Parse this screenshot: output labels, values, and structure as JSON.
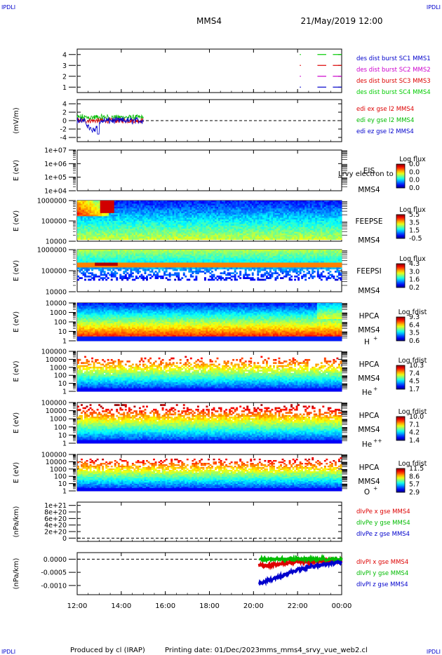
{
  "header": {
    "corner_left_top": "IPDLI",
    "corner_right_top": "IPDLI",
    "corner_left_bottom": "IPDLI",
    "corner_right_bottom": "IPDLI",
    "spacecraft": "MMS4",
    "date": "21/May/2019 12:00"
  },
  "footer": {
    "produced_by": "Produced by cl (IRAP)",
    "printing_date": "Printing date: 01/Dec/2023",
    "script_name": "mms_mms4_srvy_vue_web2.cl"
  },
  "time_axis": {
    "start_hours": 12,
    "end_hours": 24,
    "tick_labels": [
      "12:00",
      "14:00",
      "16:00",
      "18:00",
      "20:00",
      "22:00",
      "00:00"
    ],
    "tick_hours": [
      12,
      14,
      16,
      18,
      20,
      22,
      24
    ]
  },
  "colors": {
    "mms1": "#0000cc",
    "mms2": "#cc00cc",
    "mms3": "#dd0000",
    "mms4": "#00cc00",
    "ex": "#dd0000",
    "ey": "#00bb00",
    "ez": "#0000cc"
  },
  "chart_data": [
    {
      "id": "burst",
      "type": "scatter",
      "ylim": [
        0.5,
        4.5
      ],
      "yticks": [
        1,
        2,
        3,
        4
      ],
      "ytick_labels": [
        "1",
        "2",
        "3",
        "4"
      ],
      "ylabel": "",
      "legend": [
        {
          "label": "des dist burst SC1 MMS1",
          "color": "#0000cc"
        },
        {
          "label": "des dist burst SC2 MMS2",
          "color": "#cc00cc"
        },
        {
          "label": "des dist burst SC3 MMS3",
          "color": "#dd0000"
        },
        {
          "label": "des dist burst SC4 MMS4",
          "color": "#00cc00"
        }
      ],
      "series": [
        {
          "name": "des dist burst SC1 MMS1",
          "level": 1,
          "intervals": [
            [
              22.1,
              22.15
            ],
            [
              22.9,
              23.3
            ],
            [
              23.6,
              24.0
            ]
          ]
        },
        {
          "name": "des dist burst SC2 MMS2",
          "level": 2,
          "intervals": [
            [
              22.1,
              22.15
            ],
            [
              22.9,
              23.3
            ],
            [
              23.6,
              24.0
            ]
          ]
        },
        {
          "name": "des dist burst SC3 MMS3",
          "level": 3,
          "intervals": [
            [
              22.1,
              22.15
            ],
            [
              22.9,
              23.3
            ],
            [
              23.6,
              24.0
            ]
          ]
        },
        {
          "name": "des dist burst SC4 MMS4",
          "level": 4,
          "intervals": [
            [
              22.1,
              22.15
            ],
            [
              22.9,
              23.3
            ],
            [
              23.6,
              24.0
            ]
          ]
        }
      ]
    },
    {
      "id": "edi",
      "type": "line",
      "ylim": [
        -5,
        5
      ],
      "yticks": [
        4,
        2,
        0,
        -2,
        -4
      ],
      "ytick_labels": [
        "4",
        "2",
        "0",
        "-2",
        "-4"
      ],
      "ylabel": "(mV/m)",
      "zero_line": true,
      "legend": [
        {
          "label": "edi ex gse l2 MMS4",
          "color": "#dd0000"
        },
        {
          "label": "edi ey gse l2 MMS4",
          "color": "#00bb00"
        },
        {
          "label": "edi ez gse l2 MMS4",
          "color": "#0000cc"
        }
      ],
      "data_range_hours": [
        12.0,
        15.0
      ]
    },
    {
      "id": "eis",
      "type": "heatmap",
      "ylog": true,
      "ylim": [
        10000,
        10000000
      ],
      "yticks": [
        10000,
        100000,
        1000000,
        10000000
      ],
      "ytick_labels": [
        "1e+04",
        "1e+05",
        "1e+06",
        "1e+07"
      ],
      "ylabel": "E (eV)",
      "instrument": "EIS",
      "spacecraft": "MMS4",
      "overlap_text": "Lrvy electron to",
      "colorbar": {
        "title": "Log flux",
        "tick_labels": [
          "0.0",
          "0.0",
          "0.0",
          "0.0"
        ]
      },
      "empty": true
    },
    {
      "id": "feepse",
      "type": "heatmap",
      "ylog": true,
      "ylim": [
        10000,
        1000000
      ],
      "yticks": [
        10000,
        100000,
        1000000
      ],
      "ytick_labels": [
        "10000",
        "100000",
        "1000000"
      ],
      "ylabel": "E (eV)",
      "instrument": "FEEPSE",
      "spacecraft": "MMS4",
      "colorbar": {
        "title": "Log flux",
        "tick_labels": [
          "5.5",
          "3.5",
          "1.5",
          "-0.5"
        ]
      }
    },
    {
      "id": "feepsi",
      "type": "heatmap",
      "ylog": true,
      "ylim": [
        10000,
        1000000
      ],
      "yticks": [
        10000,
        100000,
        1000000
      ],
      "ytick_labels": [
        "10000",
        "100000",
        "1000000"
      ],
      "ylabel": "E (eV)",
      "instrument": "FEEPSI",
      "spacecraft": "MMS4",
      "colorbar": {
        "title": "Log flux",
        "tick_labels": [
          "4.3",
          "3.0",
          "1.6",
          "0.2"
        ]
      }
    },
    {
      "id": "hpca_h",
      "type": "heatmap",
      "ylog": true,
      "ylim": [
        1,
        10000
      ],
      "yticks": [
        1,
        10,
        100,
        1000,
        10000
      ],
      "ytick_labels": [
        "1",
        "10",
        "100",
        "1000",
        "10000"
      ],
      "ylabel": "E (eV)",
      "instrument": "HPCA",
      "spacecraft": "MMS4",
      "species": "H",
      "species_sup": "+",
      "colorbar": {
        "title": "Log fdist",
        "tick_labels": [
          "9.3",
          "6.4",
          "3.5",
          "0.6"
        ]
      }
    },
    {
      "id": "hpca_he",
      "type": "heatmap",
      "ylog": true,
      "ylim": [
        1,
        100000
      ],
      "yticks": [
        1,
        10,
        100,
        1000,
        10000,
        100000
      ],
      "ytick_labels": [
        "1",
        "10",
        "100",
        "1000",
        "10000",
        "100000"
      ],
      "ylabel": "E (eV)",
      "instrument": "HPCA",
      "spacecraft": "MMS4",
      "species": "He",
      "species_sup": "+",
      "colorbar": {
        "title": "Log fdist",
        "tick_labels": [
          "10.3",
          "7.4",
          "4.5",
          "1.7"
        ]
      }
    },
    {
      "id": "hpca_he2",
      "type": "heatmap",
      "ylog": true,
      "ylim": [
        1,
        100000
      ],
      "yticks": [
        1,
        10,
        100,
        1000,
        10000,
        100000
      ],
      "ytick_labels": [
        "1",
        "10",
        "100",
        "1000",
        "10000",
        "100000"
      ],
      "ylabel": "E (eV)",
      "instrument": "HPCA",
      "spacecraft": "MMS4",
      "species": "He",
      "species_sup": "++",
      "colorbar": {
        "title": "Log fdist",
        "tick_labels": [
          "10.0",
          "7.1",
          "4.2",
          "1.4"
        ]
      }
    },
    {
      "id": "hpca_o",
      "type": "heatmap",
      "ylog": true,
      "ylim": [
        1,
        100000
      ],
      "yticks": [
        1,
        10,
        100,
        1000,
        10000,
        100000
      ],
      "ytick_labels": [
        "1",
        "10",
        "100",
        "1000",
        "10000",
        "100000"
      ],
      "ylabel": "E (eV)",
      "instrument": "HPCA",
      "spacecraft": "MMS4",
      "species": "O",
      "species_sup": "+",
      "colorbar": {
        "title": "Log fdist",
        "tick_labels": [
          "11.5",
          "8.6",
          "5.7",
          "2.9"
        ]
      }
    },
    {
      "id": "divpe",
      "type": "line",
      "ylim": [
        -1e+20,
        1.1e+21
      ],
      "yticks": [
        1e+21,
        8e+20,
        6e+20,
        4e+20,
        2e+20,
        0
      ],
      "ytick_labels": [
        "1e+21",
        "8e+20",
        "6e+20",
        "4e+20",
        "2e+20",
        "0"
      ],
      "ylabel": "(nPa/km)",
      "zero_line": true,
      "legend": [
        {
          "label": "dIvPe x gse MMS4",
          "color": "#dd0000"
        },
        {
          "label": "dIvPe y gse MMS4",
          "color": "#00bb00"
        },
        {
          "label": "dIvPe z gse MMS4",
          "color": "#0000cc"
        }
      ],
      "empty": true
    },
    {
      "id": "divpi",
      "type": "line",
      "ylim": [
        -0.00135,
        0.00025
      ],
      "yticks": [
        0.0,
        -0.0005,
        -0.001
      ],
      "ytick_labels": [
        "0.0000",
        "-0.0005",
        "-0.0010"
      ],
      "ylabel": "(nPa/km)",
      "zero_line": true,
      "legend": [
        {
          "label": "dIvPI x gse MMS4",
          "color": "#dd0000"
        },
        {
          "label": "dIvPI y gse MMS4",
          "color": "#00bb00"
        },
        {
          "label": "dIvPI z gse MMS4",
          "color": "#0000cc"
        }
      ],
      "series": [
        {
          "name": "dIvPI x gse MMS4",
          "x": [
            20.25,
            20.5,
            21.0,
            21.5,
            22.0,
            22.5,
            23.0,
            23.5,
            24.0
          ],
          "y": [
            -0.0002,
            -0.00025,
            -0.0002,
            -0.00015,
            -0.0001,
            -0.0001,
            -8e-05,
            -6e-05,
            -5e-05
          ]
        },
        {
          "name": "dIvPI y gse MMS4",
          "x": [
            20.25,
            20.5,
            21.0,
            21.5,
            22.0,
            22.5,
            23.0,
            23.5,
            24.0
          ],
          "y": [
            5e-05,
            0.0,
            0.0,
            0.0,
            0.0,
            0.0,
            0.0,
            0.0,
            0.0
          ]
        },
        {
          "name": "dIvPI z gse MMS4",
          "x": [
            20.25,
            20.5,
            21.0,
            21.5,
            22.0,
            22.5,
            23.0,
            23.5,
            24.0
          ],
          "y": [
            -0.0009,
            -0.00085,
            -0.0007,
            -0.00055,
            -0.0004,
            -0.0003,
            -0.00022,
            -0.00016,
            -0.00012
          ]
        }
      ]
    }
  ]
}
